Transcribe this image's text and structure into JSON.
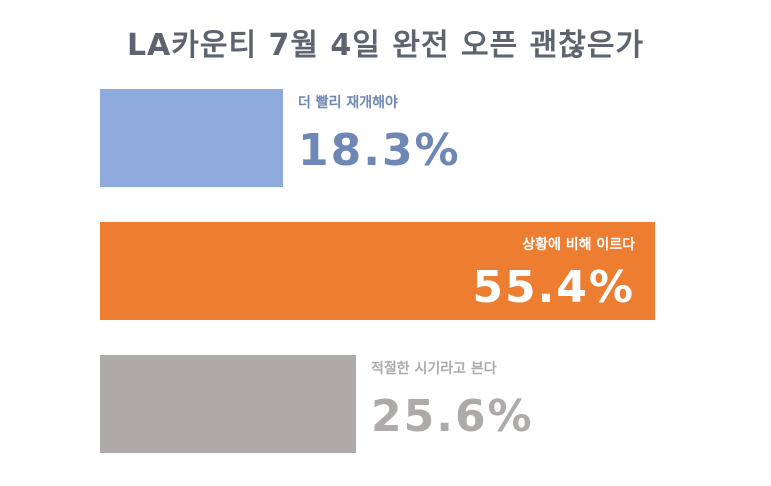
{
  "chart_data": {
    "type": "bar",
    "orientation": "horizontal",
    "title": "LA카운티 7월 4일 완전 오픈 괜찮은가",
    "categories": [
      "더 빨리 재개해야",
      "상황에 비해 이르다",
      "적절한 시기라고 본다"
    ],
    "values": [
      18.3,
      55.4,
      25.6
    ],
    "value_labels": [
      "18.3%",
      "55.4%",
      "25.6%"
    ],
    "colors": [
      "#8faadc",
      "#ed7d31",
      "#aeaaaa"
    ],
    "label_colors": [
      "#6f87b4",
      "#ffffff",
      "#aeaaaa"
    ],
    "xlim": [
      0,
      55.4
    ],
    "grid": false
  }
}
